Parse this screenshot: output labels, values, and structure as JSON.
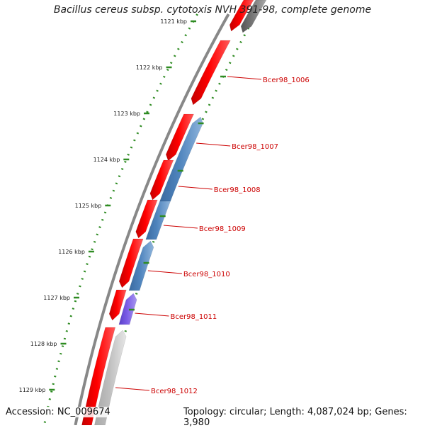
{
  "title": "Bacillus cereus subsp. cytotoxis NVH 391-98, complete genome",
  "accession": "Accession: NC_009674",
  "summary": "Topology: circular; Length: 4,087,024 bp; Genes: 3,980",
  "colors": {
    "forward_cds": "#ff0000",
    "reverse_cds_blue": "#4f84bd",
    "reverse_cds_purple": "#7a5ce6",
    "other_track": "#bdbdbd",
    "dark_track": "#777777",
    "label_color": "#cc0000",
    "tick_color": "#2e8b22",
    "backbone": "#888888"
  },
  "kbp_ticks": [
    "1121 kbp",
    "1122 kbp",
    "1123 kbp",
    "1124 kbp",
    "1125 kbp",
    "1126 kbp",
    "1127 kbp",
    "1128 kbp",
    "1129 kbp"
  ],
  "gene_labels": [
    "Bcer98_1006",
    "Bcer98_1007",
    "Bcer98_1008",
    "Bcer98_1009",
    "Bcer98_1010",
    "Bcer98_1011",
    "Bcer98_1012"
  ]
}
